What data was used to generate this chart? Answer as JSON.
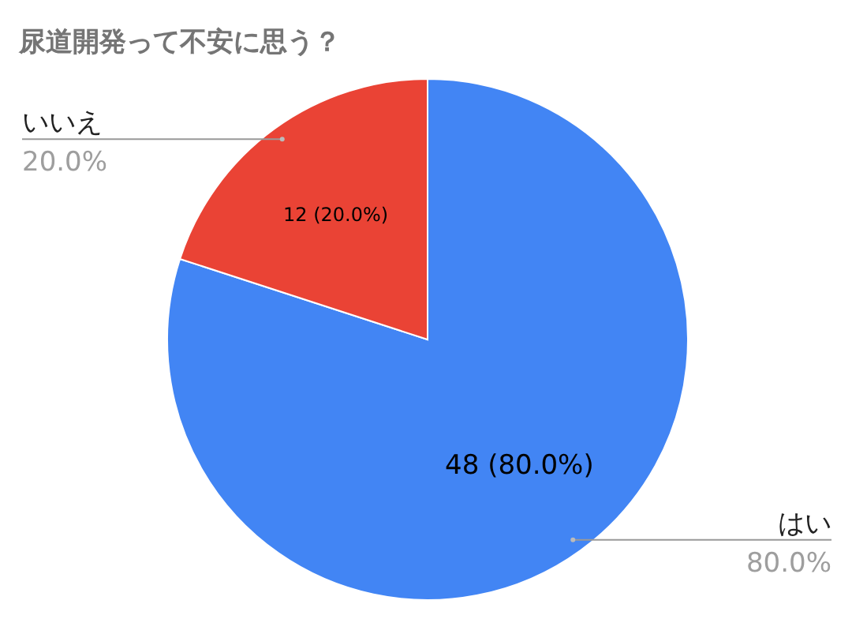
{
  "chart_data": {
    "type": "pie",
    "title": "尿道開発って不安に思う？",
    "categories": [
      "はい",
      "いいえ"
    ],
    "values": [
      48,
      12
    ],
    "colors": [
      "#4285f4",
      "#ea4335"
    ],
    "value_labels": [
      "48 (80.0%)",
      "12 (20.0%)"
    ],
    "annotations": [
      {
        "text": "80.0%",
        "x": "はい"
      },
      {
        "text": "20.0%",
        "x": "いいえ"
      }
    ]
  }
}
